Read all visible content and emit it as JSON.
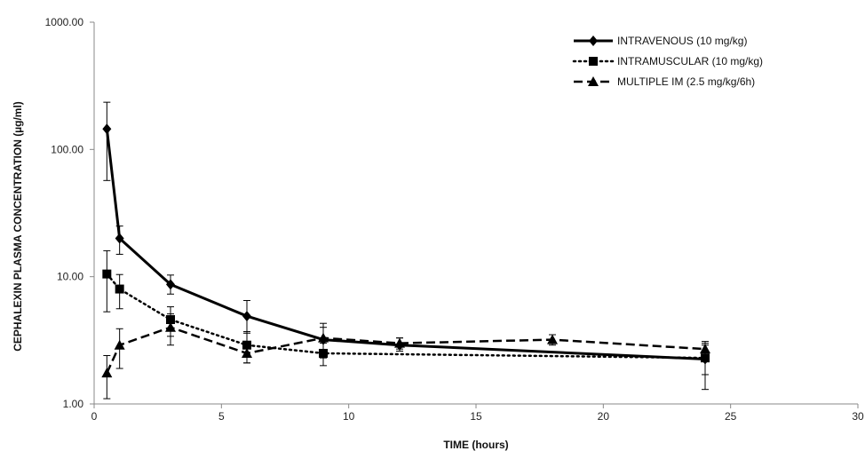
{
  "chart_data": {
    "type": "line",
    "title": "",
    "xlabel": "TIME (hours)",
    "ylabel": "CEPHALEXIN PLASMA CONCENTRATION (µg/ml)",
    "xlim": [
      0,
      30
    ],
    "ylim": [
      1,
      1000
    ],
    "y_scale": "log",
    "x_ticks": [
      "0",
      "5",
      "10",
      "15",
      "20",
      "25",
      "30"
    ],
    "y_ticks": [
      "1.00",
      "10.00",
      "100.00",
      "1000.00"
    ],
    "grid": false,
    "legend_position": "top-right",
    "series": [
      {
        "name": "INTRAVENOUS  (10 mg/kg)",
        "marker": "diamond",
        "line": "solid",
        "points": [
          {
            "x": 0.5,
            "y": 145,
            "err_low": 57,
            "err_high": 235
          },
          {
            "x": 1,
            "y": 20,
            "err_low": 15,
            "err_high": 25
          },
          {
            "x": 3,
            "y": 8.7,
            "err_low": 7.3,
            "err_high": 10.3
          },
          {
            "x": 6,
            "y": 4.9,
            "err_low": 3.6,
            "err_high": 6.5
          },
          {
            "x": 9,
            "y": 3.2,
            "err_low": 2.5,
            "err_high": 4.0
          },
          {
            "x": 12,
            "y": 2.9,
            "err_low": 2.6,
            "err_high": 3.3
          },
          {
            "x": 24,
            "y": 2.25,
            "err_low": 1.7,
            "err_high": 2.9
          }
        ]
      },
      {
        "name": "INTRAMUSCULAR  (10 mg/kg)",
        "marker": "square",
        "line": "dotted",
        "points": [
          {
            "x": 0.5,
            "y": 10.5,
            "err_low": 5.3,
            "err_high": 16
          },
          {
            "x": 1,
            "y": 8.0,
            "err_low": 5.6,
            "err_high": 10.4
          },
          {
            "x": 3,
            "y": 4.6,
            "err_low": 3.4,
            "err_high": 5.8
          },
          {
            "x": 6,
            "y": 2.9,
            "err_low": 2.1,
            "err_high": 3.7
          },
          {
            "x": 9,
            "y": 2.5,
            "err_low": 2.0,
            "err_high": 3.0
          },
          {
            "x": 24,
            "y": 2.3,
            "err_low": 1.3,
            "err_high": 3.1
          }
        ]
      },
      {
        "name": "MULTIPLE IM  (2.5 mg/kg/6h)",
        "marker": "triangle",
        "line": "dashed",
        "points": [
          {
            "x": 0.5,
            "y": 1.75,
            "err_low": 1.1,
            "err_high": 2.4
          },
          {
            "x": 1,
            "y": 2.9,
            "err_low": 1.9,
            "err_high": 3.9
          },
          {
            "x": 3,
            "y": 4.0,
            "err_low": 2.9,
            "err_high": 5.1
          },
          {
            "x": 6,
            "y": 2.5,
            "err_low": 2.1,
            "err_high": 2.9
          },
          {
            "x": 9,
            "y": 3.3,
            "err_low": 2.3,
            "err_high": 4.3
          },
          {
            "x": 12,
            "y": 3.0,
            "err_low": 2.7,
            "err_high": 3.3
          },
          {
            "x": 18,
            "y": 3.2,
            "err_low": 2.9,
            "err_high": 3.5
          },
          {
            "x": 24,
            "y": 2.7,
            "err_low": 2.4,
            "err_high": 3.0
          }
        ]
      }
    ]
  }
}
